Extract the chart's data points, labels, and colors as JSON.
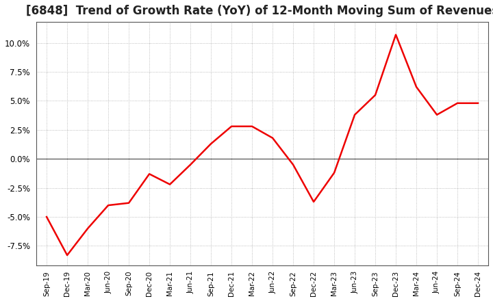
{
  "title": "[6848]  Trend of Growth Rate (YoY) of 12-Month Moving Sum of Revenues",
  "title_fontsize": 12,
  "line_color": "#ee0000",
  "line_width": 1.8,
  "background_color": "#ffffff",
  "plot_bg_color": "#ffffff",
  "grid_color": "#aaaaaa",
  "border_color": "#555555",
  "ylim": [
    -0.092,
    0.118
  ],
  "yticks": [
    -0.075,
    -0.05,
    -0.025,
    0.0,
    0.025,
    0.05,
    0.075,
    0.1
  ],
  "x_labels": [
    "Sep-19",
    "Dec-19",
    "Mar-20",
    "Jun-20",
    "Sep-20",
    "Dec-20",
    "Mar-21",
    "Jun-21",
    "Sep-21",
    "Dec-21",
    "Mar-22",
    "Jun-22",
    "Sep-22",
    "Dec-22",
    "Mar-23",
    "Jun-23",
    "Sep-23",
    "Dec-23",
    "Mar-24",
    "Jun-24",
    "Sep-24",
    "Dec-24"
  ],
  "values": [
    -0.05,
    -0.083,
    -0.06,
    -0.04,
    -0.038,
    -0.013,
    -0.022,
    -0.005,
    0.013,
    0.028,
    0.028,
    0.018,
    -0.005,
    -0.037,
    -0.012,
    0.038,
    0.055,
    0.107,
    0.062,
    0.038,
    0.048,
    0.048
  ]
}
